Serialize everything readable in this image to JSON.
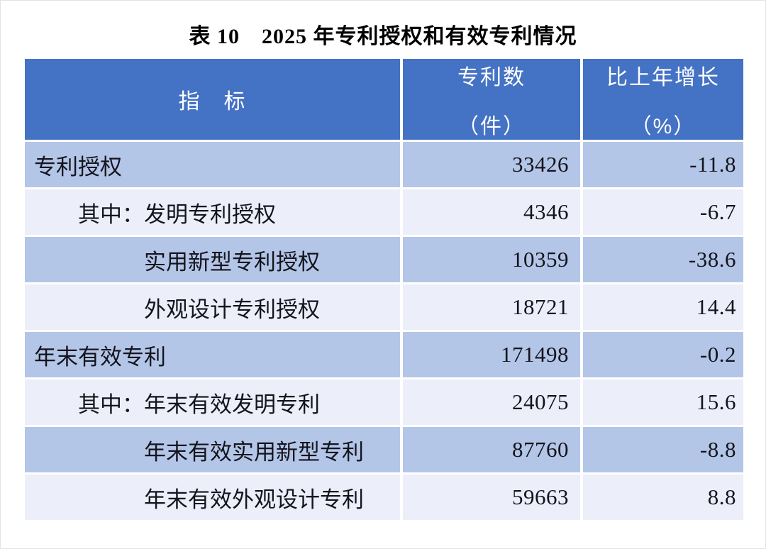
{
  "title": "表 10　2025 年专利授权和有效专利情况",
  "table": {
    "headers": {
      "indicator": "指　标",
      "count_line1": "专利数",
      "count_line2": "（件）",
      "growth_line1": "比上年增长",
      "growth_line2": "（%）"
    },
    "rows": [
      {
        "indicator": "专利授权",
        "count": "33426",
        "growth": "-11.8",
        "level": 0,
        "shade": "dark"
      },
      {
        "indicator": "其中：发明专利授权",
        "count": "4346",
        "growth": "-6.7",
        "level": 1,
        "shade": "light"
      },
      {
        "indicator": "实用新型专利授权",
        "count": "10359",
        "growth": "-38.6",
        "level": 2,
        "shade": "dark"
      },
      {
        "indicator": "外观设计专利授权",
        "count": "18721",
        "growth": "14.4",
        "level": 2,
        "shade": "light"
      },
      {
        "indicator": "年末有效专利",
        "count": "171498",
        "growth": "-0.2",
        "level": 0,
        "shade": "dark"
      },
      {
        "indicator": "其中：年末有效发明专利",
        "count": "24075",
        "growth": "15.6",
        "level": 1,
        "shade": "light"
      },
      {
        "indicator": "年末有效实用新型专利",
        "count": "87760",
        "growth": "-8.8",
        "level": 2,
        "shade": "dark"
      },
      {
        "indicator": "年末有效外观设计专利",
        "count": "59663",
        "growth": "8.8",
        "level": 2,
        "shade": "light"
      }
    ],
    "colors": {
      "header_bg": "#4472C4",
      "row_dark_bg": "#B4C6E7",
      "row_light_bg": "#ECEFFA",
      "header_text": "#FFFFFF",
      "body_text": "#14141D"
    }
  }
}
